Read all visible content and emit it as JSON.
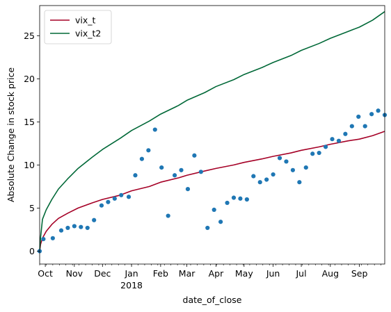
{
  "chart_data": {
    "type": "scatter",
    "xlabel": "date_of_close",
    "ylabel": "Absolute Change in stock price",
    "x_range": [
      "2017-09-25",
      "2018-09-28"
    ],
    "ylim": [
      -1.5,
      28.5
    ],
    "y_ticks": [
      0,
      5,
      10,
      15,
      20,
      25
    ],
    "x_ticks": [
      {
        "date": "2017-10-01",
        "label": "Oct",
        "sub": ""
      },
      {
        "date": "2017-11-01",
        "label": "Nov",
        "sub": ""
      },
      {
        "date": "2017-12-01",
        "label": "Dec",
        "sub": ""
      },
      {
        "date": "2018-01-01",
        "label": "Jan",
        "sub": "2018"
      },
      {
        "date": "2018-02-01",
        "label": "Feb",
        "sub": ""
      },
      {
        "date": "2018-03-01",
        "label": "Mar",
        "sub": ""
      },
      {
        "date": "2018-04-01",
        "label": "Apr",
        "sub": ""
      },
      {
        "date": "2018-05-01",
        "label": "May",
        "sub": ""
      },
      {
        "date": "2018-06-01",
        "label": "Jun",
        "sub": ""
      },
      {
        "date": "2018-07-01",
        "label": "Jul",
        "sub": ""
      },
      {
        "date": "2018-08-01",
        "label": "Aug",
        "sub": ""
      },
      {
        "date": "2018-09-01",
        "label": "Sep",
        "sub": ""
      }
    ],
    "grid": false,
    "legend": {
      "placement": "top-left"
    },
    "series": [
      {
        "name": "vix_t",
        "kind": "line",
        "color": "#a50026",
        "points": [
          [
            "2017-09-25",
            0
          ],
          [
            "2017-09-26",
            0.8
          ],
          [
            "2017-09-28",
            1.5
          ],
          [
            "2017-10-02",
            2.3
          ],
          [
            "2017-10-08",
            3.1
          ],
          [
            "2017-10-15",
            3.8
          ],
          [
            "2017-10-25",
            4.4
          ],
          [
            "2017-11-05",
            5.0
          ],
          [
            "2017-11-20",
            5.6
          ],
          [
            "2017-12-01",
            6.0
          ],
          [
            "2017-12-20",
            6.5
          ],
          [
            "2018-01-01",
            7.0
          ],
          [
            "2018-01-20",
            7.5
          ],
          [
            "2018-02-01",
            8.0
          ],
          [
            "2018-02-20",
            8.5
          ],
          [
            "2018-03-01",
            8.8
          ],
          [
            "2018-03-20",
            9.3
          ],
          [
            "2018-04-01",
            9.6
          ],
          [
            "2018-04-20",
            10.0
          ],
          [
            "2018-05-01",
            10.3
          ],
          [
            "2018-05-20",
            10.7
          ],
          [
            "2018-06-01",
            11.0
          ],
          [
            "2018-06-20",
            11.4
          ],
          [
            "2018-07-01",
            11.7
          ],
          [
            "2018-07-20",
            12.1
          ],
          [
            "2018-08-01",
            12.4
          ],
          [
            "2018-08-20",
            12.8
          ],
          [
            "2018-09-01",
            13.0
          ],
          [
            "2018-09-15",
            13.4
          ],
          [
            "2018-09-28",
            13.9
          ]
        ]
      },
      {
        "name": "vix_t2",
        "kind": "line",
        "color": "#006837",
        "points": [
          [
            "2017-09-25",
            0
          ],
          [
            "2017-09-26",
            1.6
          ],
          [
            "2017-09-28",
            3.7
          ],
          [
            "2017-10-02",
            4.8
          ],
          [
            "2017-10-08",
            6.0
          ],
          [
            "2017-10-15",
            7.2
          ],
          [
            "2017-10-25",
            8.4
          ],
          [
            "2017-11-05",
            9.6
          ],
          [
            "2017-11-20",
            10.9
          ],
          [
            "2017-12-01",
            11.8
          ],
          [
            "2017-12-20",
            13.1
          ],
          [
            "2018-01-01",
            14.0
          ],
          [
            "2018-01-20",
            15.1
          ],
          [
            "2018-02-01",
            15.9
          ],
          [
            "2018-02-20",
            16.9
          ],
          [
            "2018-03-01",
            17.5
          ],
          [
            "2018-03-20",
            18.4
          ],
          [
            "2018-04-01",
            19.1
          ],
          [
            "2018-04-20",
            19.9
          ],
          [
            "2018-05-01",
            20.5
          ],
          [
            "2018-05-20",
            21.3
          ],
          [
            "2018-06-01",
            21.9
          ],
          [
            "2018-06-20",
            22.7
          ],
          [
            "2018-07-01",
            23.3
          ],
          [
            "2018-07-20",
            24.1
          ],
          [
            "2018-08-01",
            24.7
          ],
          [
            "2018-08-20",
            25.5
          ],
          [
            "2018-09-01",
            26.0
          ],
          [
            "2018-09-15",
            26.8
          ],
          [
            "2018-09-28",
            27.8
          ]
        ]
      },
      {
        "name": "",
        "kind": "scatter",
        "color": "#1f77b4",
        "points": [
          [
            "2017-09-25",
            0.0
          ],
          [
            "2017-09-29",
            1.4
          ],
          [
            "2017-10-09",
            1.5
          ],
          [
            "2017-10-18",
            2.4
          ],
          [
            "2017-10-25",
            2.7
          ],
          [
            "2017-11-01",
            2.9
          ],
          [
            "2017-11-08",
            2.8
          ],
          [
            "2017-11-15",
            2.7
          ],
          [
            "2017-11-22",
            3.6
          ],
          [
            "2017-11-30",
            5.3
          ],
          [
            "2017-12-07",
            5.7
          ],
          [
            "2017-12-14",
            6.1
          ],
          [
            "2017-12-21",
            6.5
          ],
          [
            "2017-12-29",
            6.3
          ],
          [
            "2018-01-05",
            8.8
          ],
          [
            "2018-01-12",
            10.7
          ],
          [
            "2018-01-19",
            11.7
          ],
          [
            "2018-01-26",
            14.1
          ],
          [
            "2018-02-02",
            9.7
          ],
          [
            "2018-02-09",
            4.1
          ],
          [
            "2018-02-16",
            8.8
          ],
          [
            "2018-02-23",
            9.4
          ],
          [
            "2018-03-02",
            7.2
          ],
          [
            "2018-03-09",
            11.1
          ],
          [
            "2018-03-16",
            9.2
          ],
          [
            "2018-03-23",
            2.7
          ],
          [
            "2018-03-30",
            4.8
          ],
          [
            "2018-04-06",
            3.4
          ],
          [
            "2018-04-13",
            5.6
          ],
          [
            "2018-04-20",
            6.2
          ],
          [
            "2018-04-27",
            6.1
          ],
          [
            "2018-05-04",
            6.0
          ],
          [
            "2018-05-11",
            8.7
          ],
          [
            "2018-05-18",
            8.0
          ],
          [
            "2018-05-25",
            8.3
          ],
          [
            "2018-06-01",
            8.9
          ],
          [
            "2018-06-08",
            10.8
          ],
          [
            "2018-06-15",
            10.4
          ],
          [
            "2018-06-22",
            9.4
          ],
          [
            "2018-06-29",
            8.0
          ],
          [
            "2018-07-06",
            9.7
          ],
          [
            "2018-07-13",
            11.3
          ],
          [
            "2018-07-20",
            11.4
          ],
          [
            "2018-07-27",
            12.1
          ],
          [
            "2018-08-03",
            13.0
          ],
          [
            "2018-08-10",
            12.8
          ],
          [
            "2018-08-17",
            13.6
          ],
          [
            "2018-08-24",
            14.5
          ],
          [
            "2018-08-31",
            15.6
          ],
          [
            "2018-09-07",
            14.5
          ],
          [
            "2018-09-14",
            15.9
          ],
          [
            "2018-09-21",
            16.3
          ],
          [
            "2018-09-28",
            15.8
          ]
        ]
      }
    ]
  }
}
